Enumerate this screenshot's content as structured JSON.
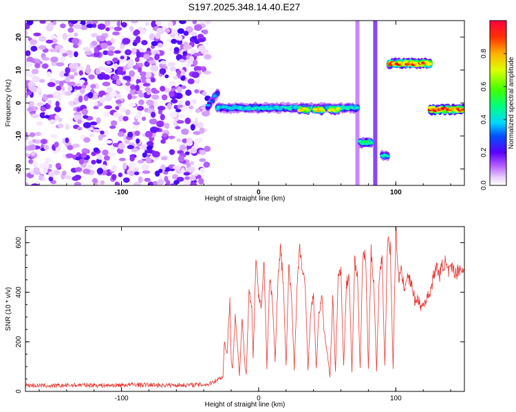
{
  "title": "S197.2025.348.14.40.E27",
  "chart_data": [
    {
      "type": "heatmap",
      "xlabel": "Height of straight line (km)",
      "ylabel": "Frequency (Hz)",
      "xlim": [
        -170,
        150
      ],
      "ylim": [
        -25,
        25
      ],
      "xticks": [
        -100,
        0,
        100
      ],
      "yticks": [
        -20,
        -10,
        0,
        10,
        20
      ],
      "colorbar": {
        "label": "Normalized spectral amplitude",
        "range": [
          0,
          1
        ],
        "ticks": [
          0.0,
          0.2,
          0.4,
          0.6,
          0.8
        ],
        "tick_labels": [
          "0.0",
          "0.2",
          "0.4",
          "0.6",
          "0.8"
        ],
        "colors": [
          "#ffffff",
          "#d9a6ff",
          "#9b30ff",
          "#3a00ff",
          "#00bfff",
          "#00ffb0",
          "#00ff00",
          "#a0ff00",
          "#ffff00",
          "#ff8000",
          "#ff0000"
        ]
      },
      "noise_region": {
        "x": [
          -170,
          -37
        ],
        "y": [
          -25,
          25
        ],
        "amplitude_range": [
          0.02,
          0.3
        ]
      },
      "tracks": [
        {
          "x": [
            -37,
            -30
          ],
          "freq": [
            -1,
            3
          ],
          "peak_amplitude": 0.35
        },
        {
          "x": [
            -30,
            72
          ],
          "freq": -1.5,
          "peak_amplitude": 0.45
        },
        {
          "x": [
            30,
            36
          ],
          "freq": -2,
          "peak_amplitude": 0.75
        },
        {
          "x": [
            41,
            47
          ],
          "freq": -2,
          "peak_amplitude": 0.75
        },
        {
          "x": [
            52,
            58
          ],
          "freq": -2,
          "peak_amplitude": 0.75
        },
        {
          "x": [
            74,
            82
          ],
          "freq": -12,
          "peak_amplitude": 0.55
        },
        {
          "x": [
            90,
            94
          ],
          "freq": -16,
          "peak_amplitude": 0.45
        },
        {
          "x": [
            95,
            125
          ],
          "freq": 12,
          "peak_amplitude": 0.9
        },
        {
          "x": [
            125,
            149
          ],
          "freq": -2,
          "peak_amplitude": 0.95
        }
      ],
      "vertical_bands": [
        {
          "x": 72,
          "y_range": [
            -25,
            25
          ],
          "amplitude": 0.15
        },
        {
          "x": 85,
          "y_range": [
            -25,
            25
          ],
          "amplitude": 0.25
        }
      ]
    },
    {
      "type": "line",
      "xlabel": "Height of straight line (km)",
      "ylabel": "SNR (10 * v/v)",
      "xlim": [
        -170,
        150
      ],
      "ylim": [
        0,
        665
      ],
      "xticks": [
        -100,
        0,
        100
      ],
      "yticks": [
        0,
        200,
        400,
        600
      ],
      "series": [
        {
          "color": "#e8342f",
          "x": [
            -170,
            -150,
            -130,
            -110,
            -90,
            -70,
            -50,
            -37,
            -26,
            -25,
            -23,
            -21,
            -20,
            -19,
            -17,
            -15,
            -14,
            -12,
            -10,
            -9,
            -7,
            -5,
            -4,
            -2,
            0,
            2,
            4,
            6,
            8,
            10,
            12,
            14,
            16,
            18,
            20,
            22,
            24,
            26,
            28,
            30,
            32,
            34,
            36,
            38,
            40,
            42,
            44,
            46,
            48,
            50,
            52,
            54,
            56,
            58,
            60,
            62,
            64,
            66,
            68,
            70,
            72,
            74,
            76,
            78,
            80,
            82,
            84,
            86,
            88,
            90,
            92,
            94,
            96,
            98,
            100,
            102,
            104,
            106,
            108,
            110,
            112,
            114,
            116,
            118,
            120,
            122,
            124,
            126,
            128,
            130,
            132,
            134,
            136,
            138,
            140,
            142,
            144,
            146,
            148,
            150
          ],
          "y": [
            25,
            22,
            26,
            24,
            27,
            25,
            26,
            28,
            60,
            200,
            150,
            380,
            120,
            90,
            320,
            150,
            60,
            300,
            100,
            70,
            400,
            330,
            130,
            560,
            380,
            350,
            520,
            90,
            450,
            380,
            120,
            440,
            580,
            430,
            100,
            500,
            380,
            90,
            420,
            580,
            480,
            420,
            90,
            330,
            380,
            90,
            320,
            380,
            230,
            160,
            60,
            380,
            80,
            470,
            480,
            100,
            430,
            470,
            80,
            520,
            480,
            90,
            560,
            540,
            90,
            560,
            440,
            80,
            480,
            540,
            100,
            620,
            580,
            90,
            650,
            460,
            480,
            420,
            460,
            450,
            420,
            360,
            380,
            340,
            350,
            370,
            390,
            420,
            480,
            500,
            470,
            510,
            520,
            480,
            490,
            500,
            470,
            500,
            490,
            480
          ]
        }
      ]
    }
  ]
}
